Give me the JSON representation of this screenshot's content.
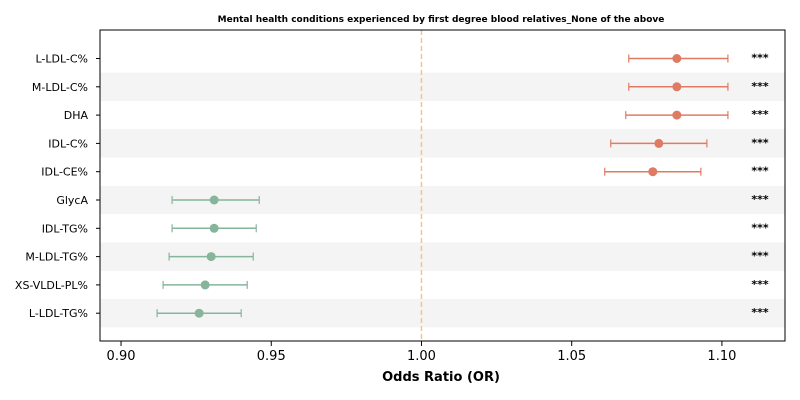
{
  "chart_data": {
    "type": "forest",
    "title": "Mental health conditions experienced by first degree blood relatives_None of the above",
    "xlabel": "Odds Ratio (OR)",
    "xlim": [
      0.893,
      1.121
    ],
    "xticks": [
      "0.90",
      "0.95",
      "1.00",
      "1.05",
      "1.10"
    ],
    "xtick_values": [
      0.9,
      0.95,
      1.0,
      1.05,
      1.1
    ],
    "reference_line": 1.0,
    "colors": {
      "above_one": "#e07b63",
      "below_one": "#86b59b",
      "reference": "#f3c58a",
      "band": "#f4f4f4"
    },
    "rows": [
      {
        "label": "L-LDL-C%",
        "or": 1.085,
        "ci_low": 1.069,
        "ci_high": 1.102,
        "sig": "***"
      },
      {
        "label": "M-LDL-C%",
        "or": 1.085,
        "ci_low": 1.069,
        "ci_high": 1.102,
        "sig": "***"
      },
      {
        "label": "DHA",
        "or": 1.085,
        "ci_low": 1.068,
        "ci_high": 1.102,
        "sig": "***"
      },
      {
        "label": "IDL-C%",
        "or": 1.079,
        "ci_low": 1.063,
        "ci_high": 1.095,
        "sig": "***"
      },
      {
        "label": "IDL-CE%",
        "or": 1.077,
        "ci_low": 1.061,
        "ci_high": 1.093,
        "sig": "***"
      },
      {
        "label": "GlycA",
        "or": 0.931,
        "ci_low": 0.917,
        "ci_high": 0.946,
        "sig": "***"
      },
      {
        "label": "IDL-TG%",
        "or": 0.931,
        "ci_low": 0.917,
        "ci_high": 0.945,
        "sig": "***"
      },
      {
        "label": "M-LDL-TG%",
        "or": 0.93,
        "ci_low": 0.916,
        "ci_high": 0.944,
        "sig": "***"
      },
      {
        "label": "XS-VLDL-PL%",
        "or": 0.928,
        "ci_low": 0.914,
        "ci_high": 0.942,
        "sig": "***"
      },
      {
        "label": "L-LDL-TG%",
        "or": 0.926,
        "ci_low": 0.912,
        "ci_high": 0.94,
        "sig": "***"
      }
    ]
  }
}
